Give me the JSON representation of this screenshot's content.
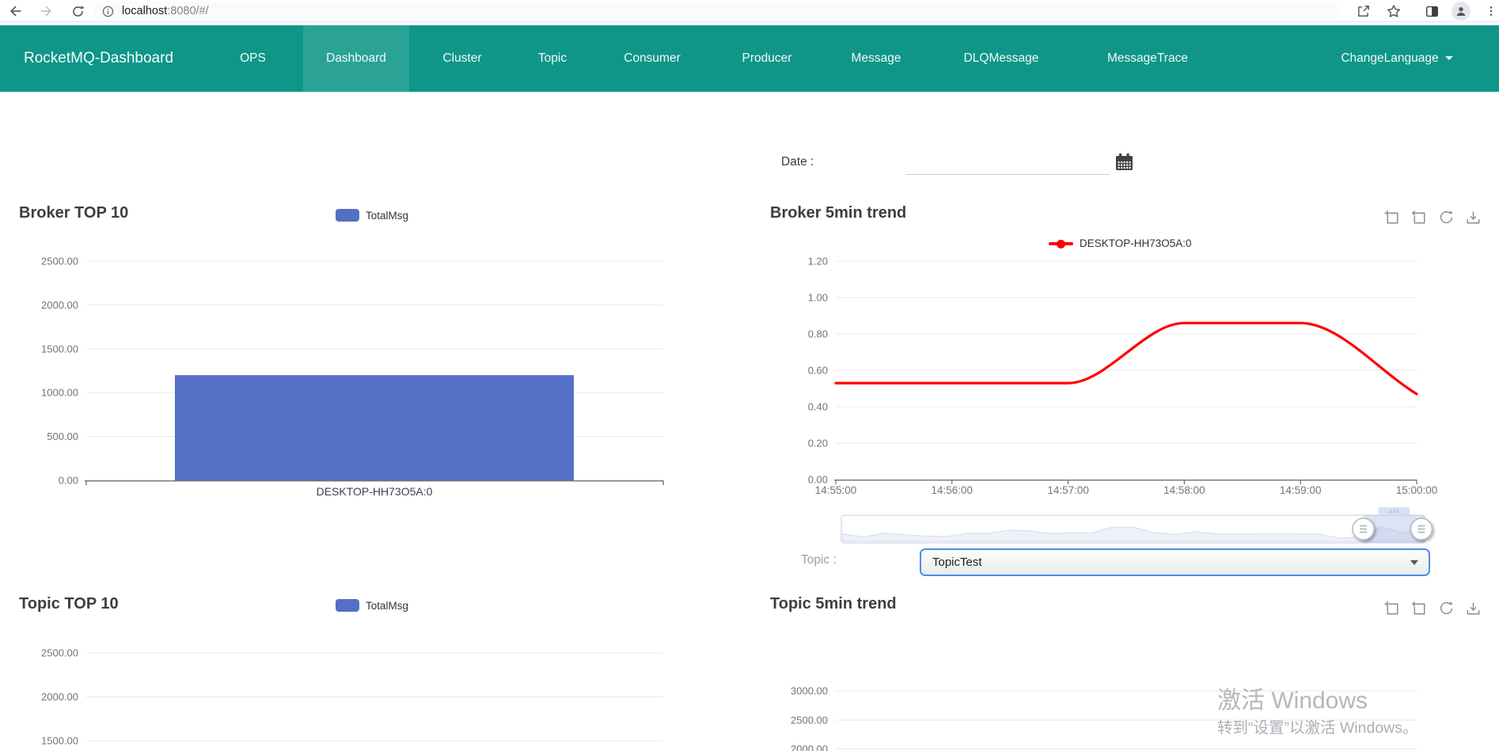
{
  "browser": {
    "url_host": "localhost",
    "url_rest": ":8080/#/"
  },
  "navbar": {
    "brand": "RocketMQ-Dashboard",
    "items": [
      {
        "label": "OPS",
        "active": false
      },
      {
        "label": "Dashboard",
        "active": true
      },
      {
        "label": "Cluster",
        "active": false
      },
      {
        "label": "Topic",
        "active": false
      },
      {
        "label": "Consumer",
        "active": false
      },
      {
        "label": "Producer",
        "active": false
      },
      {
        "label": "Message",
        "active": false
      },
      {
        "label": "DLQMessage",
        "active": false
      },
      {
        "label": "MessageTrace",
        "active": false
      }
    ],
    "language_menu": "ChangeLanguage"
  },
  "filters": {
    "date_label": "Date :",
    "date_value": "",
    "topic_label": "Topic :",
    "topic_selected": "TopicTest"
  },
  "icons": {
    "browser_left": [
      "back",
      "forward",
      "refresh",
      "page-info"
    ],
    "browser_right": [
      "share",
      "favorite-star",
      "split-screen",
      "profile",
      "menu-kebab"
    ],
    "toolbox": [
      "zoom-select",
      "zoom-restore",
      "refresh",
      "save-image"
    ],
    "other": [
      "calendar",
      "select-caret",
      "language-caret",
      "datazoom-handle"
    ]
  },
  "colors": {
    "navbar": "#0f9688",
    "navbar_active": "#2aa296",
    "bar": "#5470c6",
    "line": "#ff0000",
    "grid": "#e4e9f2",
    "axis_line": "#6e7079",
    "axis_label": "#70757d",
    "category_label": "#3e4145",
    "select_border": "#4a90e2",
    "watermark": "#b4b4ba"
  },
  "watermark": {
    "line1": "激活 Windows",
    "line2": "转到“设置”以激活 Windows。"
  },
  "chart_data": [
    {
      "id": "broker_top10",
      "type": "bar",
      "title": "Broker TOP 10",
      "legend": [
        "TotalMsg"
      ],
      "legend_position": "top-center",
      "categories": [
        "DESKTOP-HH73O5A:0"
      ],
      "values": [
        1200
      ],
      "ylim": [
        0,
        2500
      ],
      "yticks": [
        0,
        500,
        1000,
        1500,
        2000,
        2500
      ],
      "ytick_labels": [
        "0.00",
        "500.00",
        "1000.00",
        "1500.00",
        "2000.00",
        "2500.00"
      ],
      "grid": true
    },
    {
      "id": "broker_trend",
      "type": "line",
      "title": "Broker 5min trend",
      "legend_position": "top-center",
      "x": [
        "14:55:00",
        "14:56:00",
        "14:57:00",
        "14:58:00",
        "14:59:00",
        "15:00:00"
      ],
      "series": [
        {
          "name": "DESKTOP-HH73O5A:0",
          "color": "#ff0000",
          "smooth": true,
          "values": [
            0.53,
            0.53,
            0.53,
            0.86,
            0.86,
            0.47
          ]
        }
      ],
      "ylim": [
        0,
        1.2
      ],
      "yticks": [
        0,
        0.2,
        0.4,
        0.6,
        0.8,
        1.0,
        1.2
      ],
      "ytick_labels": [
        "0.00",
        "0.20",
        "0.40",
        "0.60",
        "0.80",
        "1.00",
        "1.20"
      ],
      "grid": true,
      "datazoom": {
        "preview": [
          0.3,
          0.16,
          0.34,
          0.26,
          0.2,
          0.18,
          0.32,
          0.32,
          0.46,
          0.44,
          0.32,
          0.34,
          0.35,
          0.6,
          0.6,
          0.36,
          0.28,
          0.4,
          0.3,
          0.29,
          0.3,
          0.3,
          0.3,
          0.29,
          0.1,
          0.18,
          0.62,
          0.34,
          0.58
        ],
        "selected_range": [
          0.895,
          1.0
        ]
      }
    },
    {
      "id": "topic_top10",
      "type": "bar",
      "title": "Topic TOP 10",
      "legend": [
        "TotalMsg"
      ],
      "legend_position": "top-center",
      "visible_yticks": [
        2500,
        2000,
        1500
      ],
      "ytick_labels": [
        "2500.00",
        "2000.00",
        "1500.00"
      ],
      "grid": true
    },
    {
      "id": "topic_trend",
      "type": "line",
      "title": "Topic 5min trend",
      "visible_yticks": [
        3000,
        2500,
        2000
      ],
      "ytick_labels": [
        "3000.00",
        "2500.00",
        "2000.00"
      ],
      "grid": true
    }
  ]
}
